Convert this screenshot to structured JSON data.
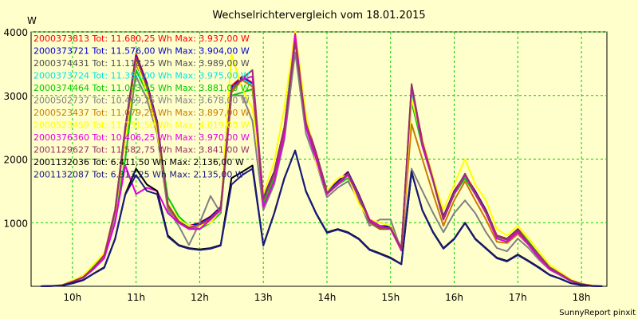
{
  "chart_data": {
    "type": "line",
    "title": "Wechselrichtervergleich vom 18.01.2015",
    "ylabel": "W",
    "xlabel": "",
    "xlim": [
      9.35,
      18.4
    ],
    "ylim": [
      0,
      4000
    ],
    "y_ticks": [
      1000,
      2000,
      3000,
      4000
    ],
    "x_ticks": [
      {
        "t": 10,
        "label": "10h"
      },
      {
        "t": 11,
        "label": "11h"
      },
      {
        "t": 12,
        "label": "12h"
      },
      {
        "t": 13,
        "label": "13h"
      },
      {
        "t": 14,
        "label": "14h"
      },
      {
        "t": 15,
        "label": "15h"
      },
      {
        "t": 16,
        "label": "16h"
      },
      {
        "t": 17,
        "label": "17h"
      },
      {
        "t": 18,
        "label": "18h"
      }
    ],
    "grid": true,
    "x": [
      9.5,
      9.67,
      9.83,
      10.0,
      10.17,
      10.33,
      10.5,
      10.67,
      10.83,
      11.0,
      11.17,
      11.33,
      11.5,
      11.67,
      11.83,
      12.0,
      12.17,
      12.33,
      12.5,
      12.67,
      12.83,
      13.0,
      13.17,
      13.33,
      13.5,
      13.67,
      13.83,
      14.0,
      14.17,
      14.33,
      14.5,
      14.67,
      14.83,
      15.0,
      15.17,
      15.33,
      15.5,
      15.67,
      15.83,
      16.0,
      16.17,
      16.33,
      16.5,
      16.67,
      16.83,
      17.0,
      17.17,
      17.33,
      17.5,
      17.67,
      17.83,
      18.0,
      18.17,
      18.33
    ],
    "series": [
      {
        "name": "2000373813",
        "legend": "2000373813 Tot: 11.680,25 Wh Max: 3.937,00 W",
        "color": "#ff0000",
        "values": [
          0,
          5,
          15,
          80,
          150,
          300,
          500,
          1200,
          2500,
          3650,
          3200,
          2600,
          1300,
          1050,
          950,
          1000,
          1100,
          1250,
          3150,
          3300,
          3200,
          1400,
          1800,
          2500,
          3937,
          2600,
          2100,
          1500,
          1650,
          1800,
          1450,
          1050,
          950,
          950,
          600,
          3100,
          2300,
          1700,
          1100,
          1500,
          1750,
          1500,
          1200,
          800,
          750,
          900,
          700,
          500,
          300,
          200,
          100,
          40,
          10,
          0
        ]
      },
      {
        "name": "2000373721",
        "legend": "2000373721 Tot: 11.576,00 Wh Max: 3.904,00 W",
        "color": "#0000cc",
        "values": [
          0,
          5,
          15,
          75,
          145,
          295,
          495,
          1180,
          2480,
          3620,
          3180,
          2580,
          1290,
          1040,
          940,
          990,
          1090,
          1240,
          3120,
          3280,
          3180,
          1390,
          1790,
          2480,
          3904,
          2580,
          2080,
          1490,
          1640,
          1790,
          1440,
          1040,
          940,
          940,
          595,
          3080,
          2280,
          1690,
          1090,
          1490,
          1740,
          1490,
          1190,
          790,
          745,
          890,
          690,
          495,
          295,
          195,
          95,
          38,
          8,
          0
        ]
      },
      {
        "name": "2000374431",
        "legend": "2000374431 Tot: 11.118,25 Wh Max: 3.989,00 W",
        "color": "#4d4d4d",
        "values": [
          0,
          5,
          15,
          70,
          140,
          285,
          480,
          1150,
          2400,
          3500,
          3100,
          2500,
          1250,
          1000,
          900,
          950,
          1050,
          1200,
          3050,
          3250,
          3150,
          1350,
          1750,
          2450,
          3989,
          2550,
          2050,
          1450,
          1600,
          1750,
          1400,
          1000,
          900,
          900,
          580,
          3000,
          2250,
          1650,
          1050,
          1450,
          1700,
          1450,
          1150,
          780,
          730,
          870,
          670,
          480,
          290,
          190,
          90,
          35,
          8,
          0
        ]
      },
      {
        "name": "2000373724",
        "legend": "2000373724 Tot: 11.354,00 Wh Max: 3.975,00 W",
        "color": "#00e5e5",
        "values": [
          0,
          5,
          15,
          75,
          145,
          290,
          490,
          1170,
          2450,
          3550,
          3150,
          2550,
          1280,
          1020,
          920,
          970,
          1070,
          1220,
          3080,
          3260,
          3170,
          1370,
          1770,
          2470,
          3975,
          2570,
          2070,
          1470,
          1620,
          1770,
          1420,
          1020,
          920,
          920,
          590,
          3050,
          2270,
          1670,
          1070,
          1470,
          1720,
          1470,
          1170,
          790,
          740,
          880,
          680,
          490,
          295,
          195,
          95,
          37,
          8,
          0
        ]
      },
      {
        "name": "2000374464",
        "legend": "2000374464 Tot: 11.043,25 Wh Max: 3.881,00 W",
        "color": "#00cc00",
        "values": [
          0,
          5,
          20,
          80,
          160,
          320,
          510,
          1100,
          2000,
          3400,
          3050,
          2500,
          1400,
          1100,
          950,
          900,
          1000,
          1150,
          3000,
          3050,
          3100,
          1300,
          1700,
          2400,
          3881,
          2500,
          2050,
          1450,
          1600,
          1700,
          1400,
          1000,
          950,
          900,
          580,
          2900,
          2200,
          1650,
          1050,
          1450,
          1700,
          1450,
          1150,
          780,
          740,
          880,
          700,
          500,
          300,
          200,
          95,
          35,
          8,
          0
        ]
      },
      {
        "name": "2000502737",
        "legend": "2000502737 Tot: 10.469,25 Wh Max: 3.678,00 W",
        "color": "#808080",
        "values": [
          0,
          5,
          15,
          70,
          135,
          270,
          460,
          1100,
          2300,
          3300,
          2950,
          2400,
          1200,
          950,
          650,
          1000,
          1420,
          1150,
          3000,
          3000,
          2600,
          1200,
          1600,
          2300,
          3678,
          2400,
          1950,
          1400,
          1550,
          1650,
          1350,
          950,
          1050,
          1050,
          560,
          1850,
          1500,
          1150,
          850,
          1150,
          1350,
          1150,
          850,
          600,
          550,
          750,
          600,
          420,
          260,
          170,
          80,
          30,
          6,
          0
        ]
      },
      {
        "name": "2000523437",
        "legend": "2000523437 Tot: 11.079,25 Wh Max: 3.897,00 W",
        "color": "#cc7a00",
        "values": [
          0,
          5,
          15,
          72,
          142,
          285,
          480,
          1160,
          2420,
          3520,
          3120,
          2520,
          1260,
          1010,
          910,
          960,
          1060,
          1210,
          3060,
          3240,
          3140,
          1360,
          1760,
          2460,
          3897,
          2560,
          2060,
          1460,
          1610,
          1760,
          1410,
          1010,
          910,
          910,
          585,
          2550,
          2000,
          1450,
          950,
          1350,
          1650,
          1350,
          1050,
          700,
          680,
          820,
          650,
          470,
          285,
          185,
          88,
          34,
          8,
          0
        ]
      },
      {
        "name": "2000523459",
        "legend": "2000523459 Tot: 11.731,50 Wh Max: 4.019,00 W",
        "color": "#ffff00",
        "values": [
          0,
          5,
          20,
          90,
          170,
          340,
          520,
          1150,
          2300,
          3550,
          3050,
          2450,
          1300,
          1050,
          950,
          950,
          1000,
          1200,
          3650,
          3100,
          2800,
          1450,
          1950,
          2800,
          4019,
          2700,
          1950,
          1500,
          1700,
          1750,
          1300,
          1050,
          1000,
          950,
          550,
          2950,
          2300,
          1700,
          1200,
          1600,
          2000,
          1600,
          1350,
          900,
          800,
          950,
          750,
          550,
          340,
          220,
          110,
          45,
          12,
          0
        ]
      },
      {
        "name": "2000376360",
        "legend": "2000376360 Tot: 10.406,25 Wh Max: 3.970,00 W",
        "color": "#e500e5",
        "values": [
          0,
          5,
          15,
          70,
          135,
          270,
          440,
          1000,
          1900,
          1450,
          1550,
          1500,
          1150,
          1000,
          900,
          900,
          1050,
          1200,
          3100,
          3250,
          3300,
          1250,
          1650,
          2350,
          3970,
          2500,
          2000,
          1450,
          1600,
          1750,
          1400,
          1050,
          950,
          900,
          560,
          3150,
          2200,
          1650,
          1050,
          1450,
          1750,
          1450,
          1150,
          750,
          700,
          850,
          650,
          450,
          270,
          180,
          85,
          32,
          7,
          0
        ]
      },
      {
        "name": "2001129627",
        "legend": "2001129627 Tot: 11.582,75 Wh Max: 3.841,00 W",
        "color": "#993366",
        "values": [
          0,
          5,
          15,
          75,
          145,
          290,
          490,
          1170,
          2450,
          3600,
          3150,
          2550,
          1280,
          1020,
          920,
          970,
          1070,
          1220,
          3100,
          3270,
          3400,
          1370,
          1770,
          2470,
          3841,
          2570,
          2070,
          1470,
          1620,
          1770,
          1420,
          1020,
          920,
          920,
          590,
          3180,
          2270,
          1670,
          1070,
          1470,
          1770,
          1470,
          1170,
          790,
          740,
          880,
          680,
          490,
          295,
          195,
          95,
          37,
          8,
          0
        ]
      },
      {
        "name": "2001132036",
        "legend": "2001132036 Tot: 6.411,50 Wh Max: 2.136,00 W",
        "color": "#000000",
        "values": [
          0,
          5,
          10,
          50,
          100,
          200,
          300,
          750,
          1450,
          1850,
          1600,
          1500,
          800,
          650,
          600,
          580,
          600,
          650,
          1700,
          1800,
          1900,
          650,
          1150,
          1700,
          2136,
          1500,
          1150,
          850,
          900,
          850,
          750,
          580,
          520,
          450,
          350,
          1800,
          1200,
          850,
          600,
          750,
          1000,
          750,
          600,
          450,
          400,
          500,
          400,
          300,
          180,
          120,
          50,
          20,
          5,
          0
        ]
      },
      {
        "name": "2001132087",
        "legend": "2001132087 Tot: 6.313,25 Wh Max: 2.135,00 W",
        "color": "#1a1a80",
        "values": [
          0,
          5,
          10,
          45,
          95,
          195,
          290,
          740,
          1440,
          1750,
          1500,
          1450,
          780,
          640,
          590,
          570,
          590,
          640,
          1600,
          1750,
          1850,
          640,
          1140,
          1690,
          2135,
          1490,
          1140,
          840,
          890,
          840,
          740,
          570,
          510,
          440,
          345,
          1790,
          1190,
          840,
          590,
          740,
          990,
          740,
          590,
          440,
          390,
          490,
          390,
          290,
          175,
          115,
          48,
          18,
          4,
          0
        ]
      }
    ]
  },
  "footer": {
    "credit": "SunnyReport pinxit"
  }
}
